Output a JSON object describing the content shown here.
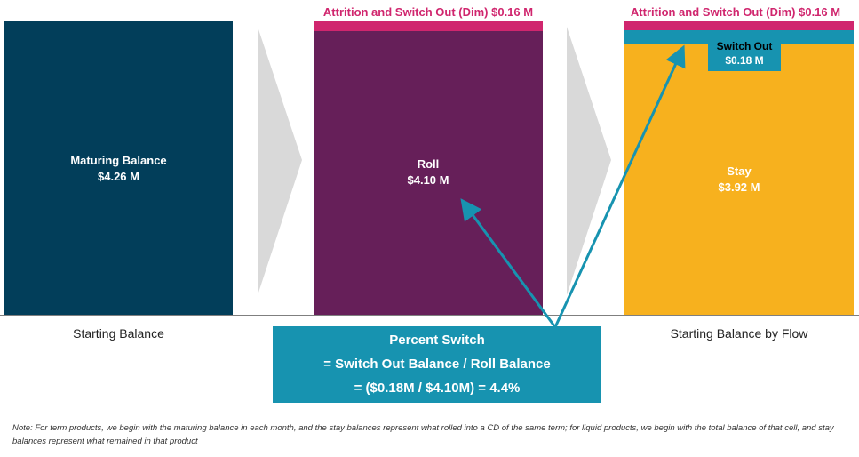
{
  "colors": {
    "maturing": "#023e5a",
    "roll": "#661f59",
    "attrition": "#d0266e",
    "stay": "#f7b11e",
    "switch_out": "#1793b0",
    "chevron": "#d9d9d9",
    "arrow": "#1793b0"
  },
  "bars": {
    "maturing": {
      "label": "Maturing Balance",
      "value": "$4.26 M"
    },
    "roll": {
      "label": "Roll",
      "value": "$4.10 M"
    },
    "stay": {
      "label": "Stay",
      "value": "$3.92 M"
    },
    "switch_out": {
      "label": "Switch Out",
      "value": "$0.18 M"
    }
  },
  "attrition_caption": "Attrition and Switch Out (Dim) $0.16 M",
  "attrition_caption_right": "Attrition and Switch Out (Dim) $0.16 M",
  "captions": {
    "left": "Starting Balance",
    "right": "Starting Balance by Flow"
  },
  "formula": {
    "line1": "Percent Switch",
    "line2": "= Switch Out Balance / Roll Balance",
    "line3": "= ($0.18M / $4.10M) = 4.4%"
  },
  "note": "Note: For term products, we begin with the maturing balance in each month, and the stay balances represent what rolled into a CD of the same term; for liquid products, we begin with the total balance of that cell, and stay balances represent what remained in that product",
  "icons": [
    "chevron-right-icon",
    "arrow-icon"
  ]
}
